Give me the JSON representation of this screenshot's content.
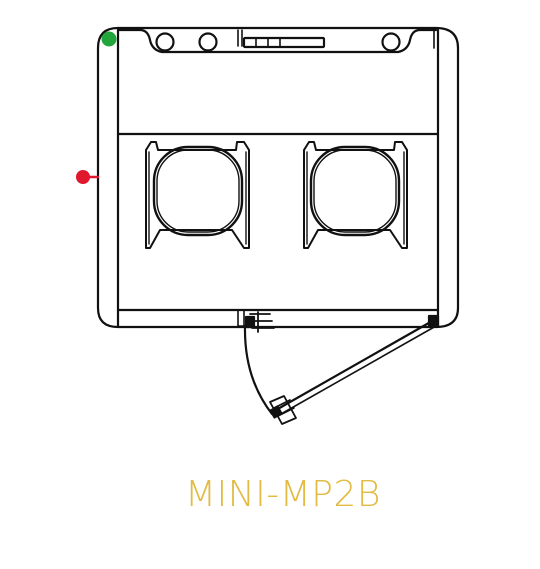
{
  "model": {
    "name": "MINI-MP2B"
  },
  "colors": {
    "line": "#111111",
    "label": "#e2bb45",
    "marker_green": "#22a53a",
    "marker_red": "#e0182d",
    "background": "#ffffff"
  },
  "markers": [
    {
      "id": "power-indicator",
      "color_key": "marker_green"
    },
    {
      "id": "supply-connection",
      "color_key": "marker_red"
    }
  ],
  "features": {
    "burners": 2,
    "top_controls": 3,
    "door": "swing-open"
  }
}
